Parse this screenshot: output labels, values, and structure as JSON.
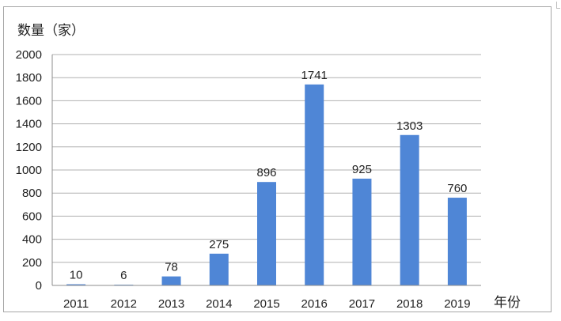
{
  "chart_data": {
    "type": "bar",
    "title": "",
    "ylabel": "数量（家）",
    "xlabel": "年份",
    "categories": [
      "2011",
      "2012",
      "2013",
      "2014",
      "2015",
      "2016",
      "2017",
      "2018",
      "2019"
    ],
    "values": [
      10,
      6,
      78,
      275,
      896,
      1741,
      925,
      1303,
      760
    ],
    "ylim": [
      0,
      2000
    ],
    "yticks": [
      0,
      200,
      400,
      600,
      800,
      1000,
      1200,
      1400,
      1600,
      1800,
      2000
    ],
    "grid": true,
    "legend": "none",
    "bar_color": "#4f86d6",
    "grid_color": "#b0b0b0",
    "axis_color": "#8c8c8c"
  }
}
